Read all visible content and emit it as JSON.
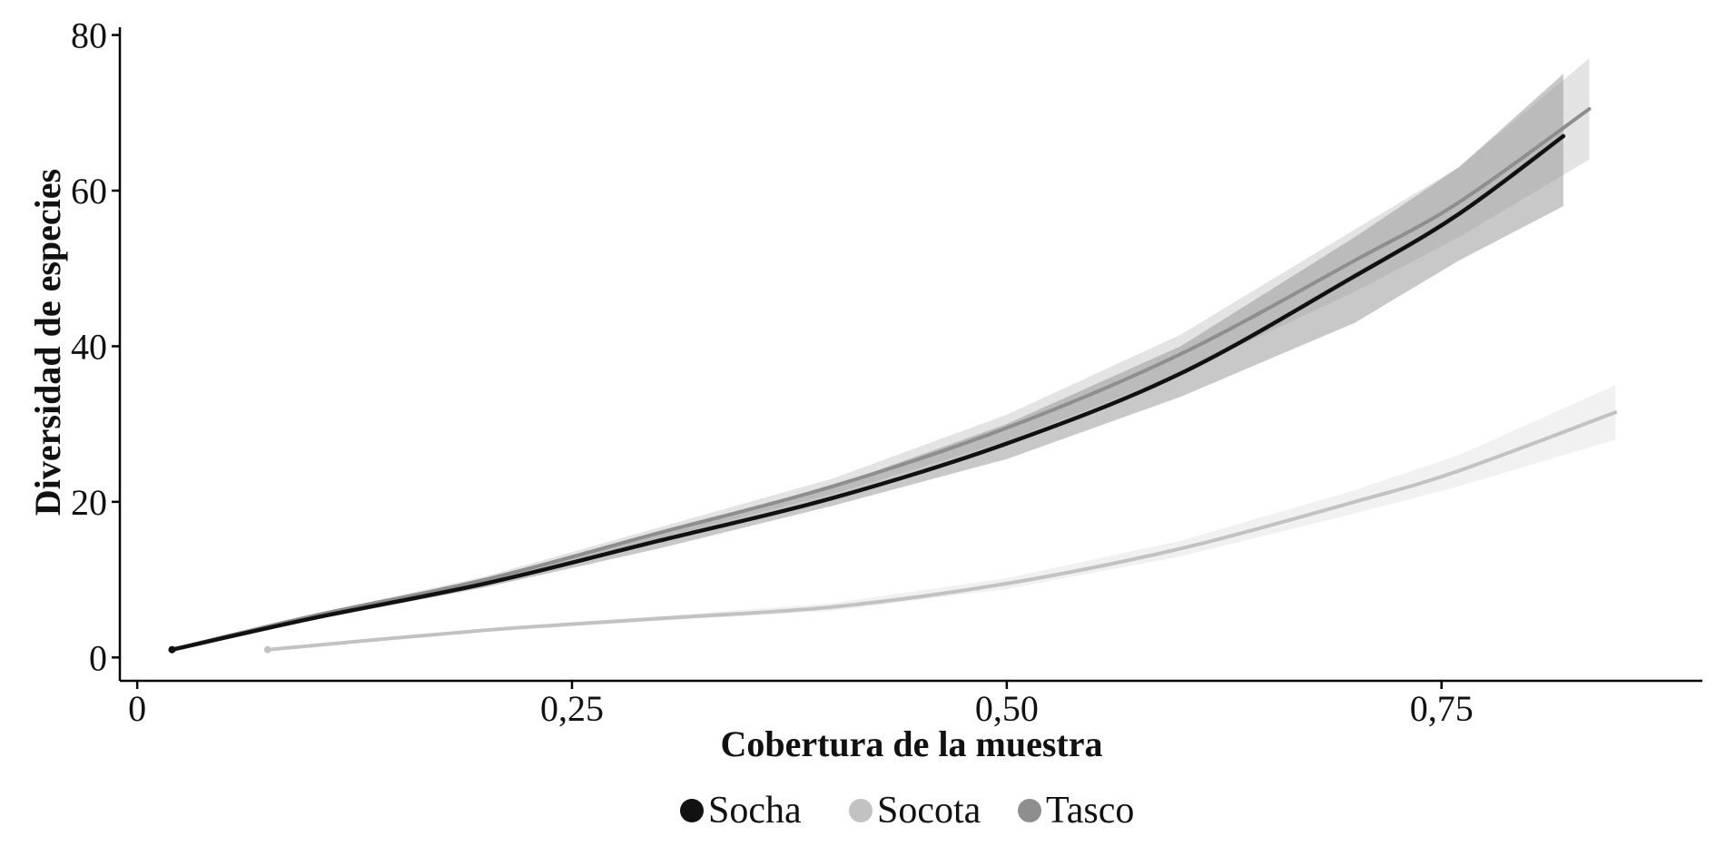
{
  "chart_data": {
    "type": "line",
    "xlabel": "Cobertura de la muestra",
    "ylabel": "Diversidad de especies",
    "xlim": [
      -0.01,
      0.9
    ],
    "ylim": [
      -3,
      81
    ],
    "x_ticks": [
      0,
      0.25,
      0.5,
      0.75
    ],
    "x_tick_labels": [
      "0",
      "0,25",
      "0,50",
      "0,75"
    ],
    "y_ticks": [
      0,
      20,
      40,
      60,
      80
    ],
    "y_tick_labels": [
      "0",
      "20",
      "40",
      "60",
      "80"
    ],
    "grid": false,
    "legend_position": "bottom",
    "series": [
      {
        "name": "Socha",
        "color": "#111111",
        "band_color": "#9a9a9a",
        "points": [
          [
            0.02,
            1
          ],
          [
            0.1,
            5
          ],
          [
            0.2,
            9.5
          ],
          [
            0.3,
            15
          ],
          [
            0.4,
            20.5
          ],
          [
            0.5,
            27.5
          ],
          [
            0.6,
            36.5
          ],
          [
            0.7,
            49
          ],
          [
            0.76,
            57
          ],
          [
            0.82,
            67
          ]
        ],
        "lower": [
          [
            0.02,
            1
          ],
          [
            0.1,
            4.8
          ],
          [
            0.2,
            9
          ],
          [
            0.3,
            14
          ],
          [
            0.4,
            19.5
          ],
          [
            0.5,
            25.5
          ],
          [
            0.6,
            33.5
          ],
          [
            0.7,
            43
          ],
          [
            0.76,
            51
          ],
          [
            0.82,
            58
          ]
        ],
        "upper": [
          [
            0.02,
            1
          ],
          [
            0.1,
            5.2
          ],
          [
            0.2,
            10
          ],
          [
            0.3,
            16
          ],
          [
            0.4,
            22
          ],
          [
            0.5,
            30
          ],
          [
            0.6,
            40
          ],
          [
            0.7,
            54
          ],
          [
            0.76,
            63
          ],
          [
            0.82,
            75
          ]
        ]
      },
      {
        "name": "Socota",
        "color": "#c2c2c2",
        "band_color": "#e6e6e6",
        "points": [
          [
            0.075,
            1
          ],
          [
            0.2,
            3.5
          ],
          [
            0.3,
            5
          ],
          [
            0.4,
            6.5
          ],
          [
            0.5,
            9.5
          ],
          [
            0.6,
            14
          ],
          [
            0.7,
            20
          ],
          [
            0.76,
            24
          ],
          [
            0.85,
            31.5
          ]
        ],
        "lower": [
          [
            0.075,
            1
          ],
          [
            0.2,
            3.3
          ],
          [
            0.3,
            4.7
          ],
          [
            0.4,
            6
          ],
          [
            0.5,
            8.8
          ],
          [
            0.6,
            13
          ],
          [
            0.7,
            18.5
          ],
          [
            0.76,
            22
          ],
          [
            0.85,
            28
          ]
        ],
        "upper": [
          [
            0.075,
            1
          ],
          [
            0.2,
            3.7
          ],
          [
            0.3,
            5.3
          ],
          [
            0.4,
            7
          ],
          [
            0.5,
            10.2
          ],
          [
            0.6,
            15
          ],
          [
            0.7,
            21.5
          ],
          [
            0.76,
            26
          ],
          [
            0.85,
            35
          ]
        ]
      },
      {
        "name": "Tasco",
        "color": "#8e8e8e",
        "band_color": "#cccccc",
        "points": [
          [
            0.02,
            1
          ],
          [
            0.1,
            5.3
          ],
          [
            0.2,
            10
          ],
          [
            0.3,
            16
          ],
          [
            0.4,
            22
          ],
          [
            0.5,
            29.5
          ],
          [
            0.6,
            39
          ],
          [
            0.7,
            51
          ],
          [
            0.76,
            58.5
          ],
          [
            0.835,
            70.5
          ]
        ],
        "lower": [
          [
            0.02,
            1
          ],
          [
            0.1,
            5.1
          ],
          [
            0.2,
            9.6
          ],
          [
            0.3,
            15.3
          ],
          [
            0.4,
            21
          ],
          [
            0.5,
            27.8
          ],
          [
            0.6,
            36.5
          ],
          [
            0.7,
            47
          ],
          [
            0.76,
            54
          ],
          [
            0.835,
            64
          ]
        ],
        "upper": [
          [
            0.02,
            1
          ],
          [
            0.1,
            5.5
          ],
          [
            0.2,
            10.4
          ],
          [
            0.3,
            16.7
          ],
          [
            0.4,
            23
          ],
          [
            0.5,
            31.2
          ],
          [
            0.6,
            41.5
          ],
          [
            0.7,
            55
          ],
          [
            0.76,
            63
          ],
          [
            0.835,
            77
          ]
        ]
      }
    ]
  }
}
